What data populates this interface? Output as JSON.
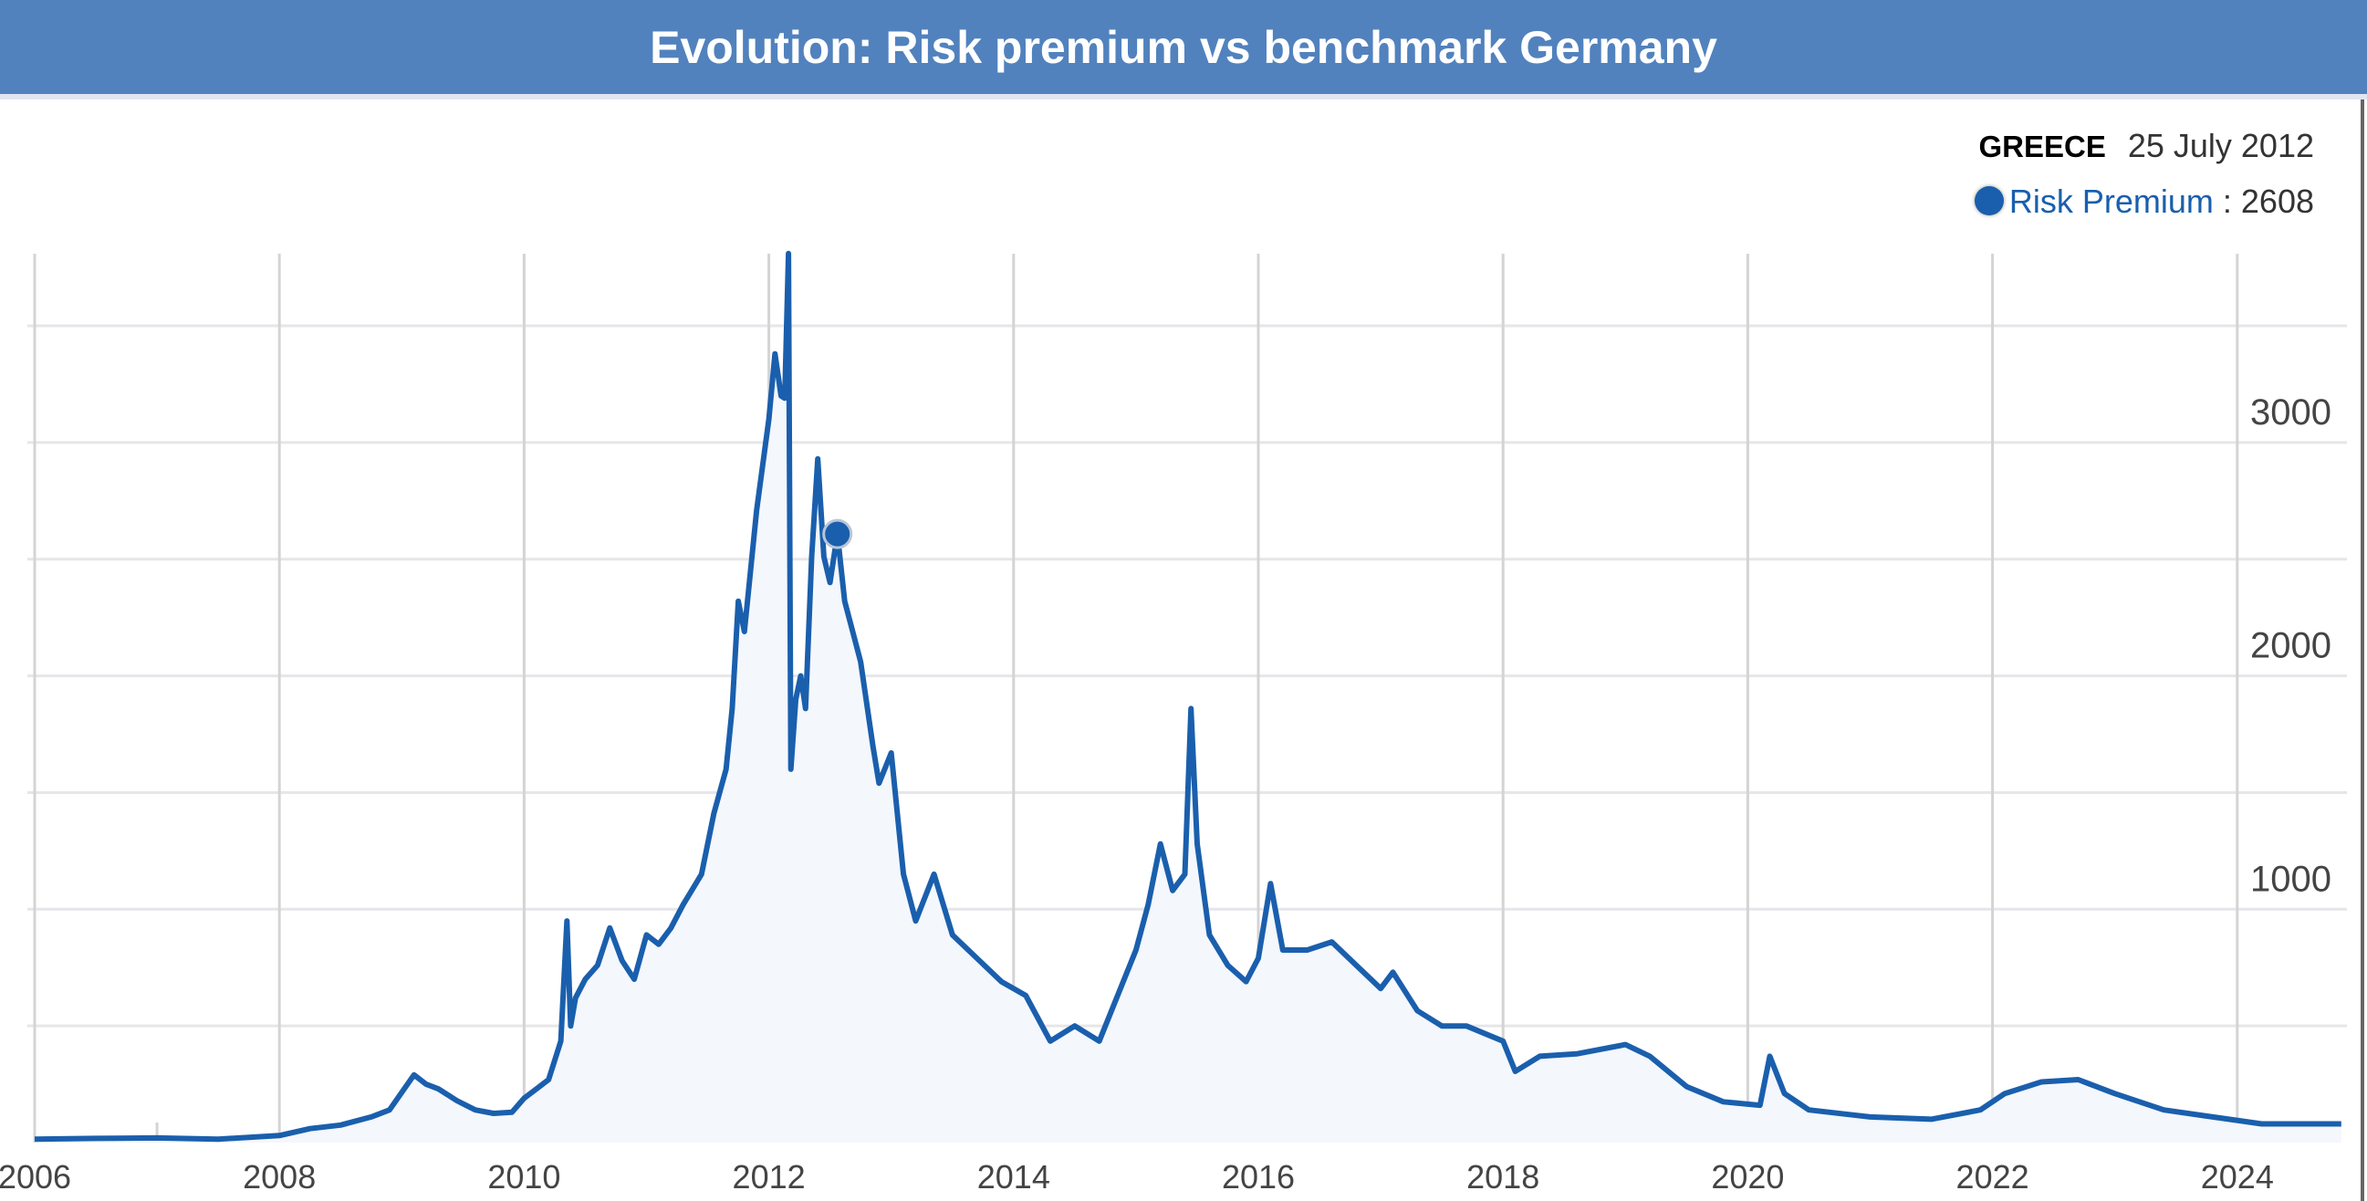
{
  "header": {
    "title": "Evolution: Risk premium vs benchmark Germany"
  },
  "tooltip": {
    "country": "GREECE",
    "date": "25 July 2012",
    "series_label": "Risk Premium",
    "separator": ":",
    "value": "2608"
  },
  "colors": {
    "header": "#5182be",
    "line": "#1a5fad",
    "fill": "#f4f7fc",
    "grid": "#d4d4d4"
  },
  "chart_data": {
    "type": "area",
    "title": "Evolution: Risk premium vs benchmark Germany",
    "xlabel": "",
    "ylabel": "",
    "xlim": [
      2006,
      2024.85
    ],
    "ylim": [
      0,
      3800
    ],
    "x_ticks": [
      "2006",
      "2008",
      "2010",
      "2012",
      "2014",
      "2016",
      "2018",
      "2020",
      "2022",
      "2024"
    ],
    "y_ticks": [
      "1000",
      "2000",
      "3000"
    ],
    "y_axis_position": "right",
    "grid": true,
    "highlight": {
      "x": 2012.56,
      "y": 2608
    },
    "series": [
      {
        "name": "Risk Premium",
        "x": [
          2006.0,
          2006.5,
          2007.0,
          2007.5,
          2008.0,
          2008.25,
          2008.5,
          2008.75,
          2008.9,
          2009.1,
          2009.2,
          2009.3,
          2009.45,
          2009.6,
          2009.75,
          2009.9,
          2010.0,
          2010.1,
          2010.2,
          2010.3,
          2010.35,
          2010.38,
          2010.42,
          2010.5,
          2010.6,
          2010.7,
          2010.8,
          2010.9,
          2011.0,
          2011.1,
          2011.2,
          2011.3,
          2011.45,
          2011.55,
          2011.65,
          2011.7,
          2011.75,
          2011.8,
          2011.9,
          2012.0,
          2012.05,
          2012.1,
          2012.13,
          2012.16,
          2012.18,
          2012.22,
          2012.26,
          2012.3,
          2012.35,
          2012.4,
          2012.45,
          2012.5,
          2012.56,
          2012.62,
          2012.68,
          2012.75,
          2012.85,
          2012.9,
          2013.0,
          2013.1,
          2013.2,
          2013.35,
          2013.5,
          2013.7,
          2013.9,
          2014.1,
          2014.3,
          2014.5,
          2014.7,
          2014.85,
          2015.0,
          2015.1,
          2015.2,
          2015.3,
          2015.4,
          2015.45,
          2015.5,
          2015.6,
          2015.75,
          2015.9,
          2016.0,
          2016.1,
          2016.2,
          2016.4,
          2016.6,
          2016.8,
          2017.0,
          2017.1,
          2017.3,
          2017.5,
          2017.7,
          2018.0,
          2018.1,
          2018.3,
          2018.6,
          2019.0,
          2019.2,
          2019.5,
          2019.8,
          2020.1,
          2020.18,
          2020.3,
          2020.5,
          2021.0,
          2021.5,
          2021.9,
          2022.1,
          2022.4,
          2022.7,
          2023.0,
          2023.4,
          2023.8,
          2024.2,
          2024.85
        ],
        "values": [
          15,
          18,
          20,
          15,
          30,
          60,
          75,
          110,
          140,
          290,
          250,
          230,
          180,
          140,
          125,
          130,
          190,
          230,
          270,
          435,
          950,
          500,
          620,
          700,
          760,
          920,
          780,
          700,
          890,
          850,
          920,
          1020,
          1150,
          1410,
          1600,
          1860,
          2320,
          2190,
          2710,
          3100,
          3380,
          3200,
          3190,
          3810,
          1600,
          1900,
          2000,
          1860,
          2510,
          2930,
          2510,
          2400,
          2608,
          2320,
          2200,
          2060,
          1700,
          1540,
          1670,
          1150,
          950,
          1150,
          890,
          790,
          690,
          630,
          435,
          500,
          435,
          630,
          825,
          1020,
          1280,
          1080,
          1150,
          1860,
          1280,
          890,
          760,
          690,
          790,
          1110,
          825,
          825,
          860,
          760,
          660,
          730,
          565,
          500,
          500,
          435,
          305,
          370,
          380,
          420,
          370,
          240,
          175,
          160,
          370,
          210,
          140,
          110,
          100,
          140,
          210,
          260,
          270,
          210,
          140,
          110,
          80,
          80
        ]
      }
    ]
  }
}
